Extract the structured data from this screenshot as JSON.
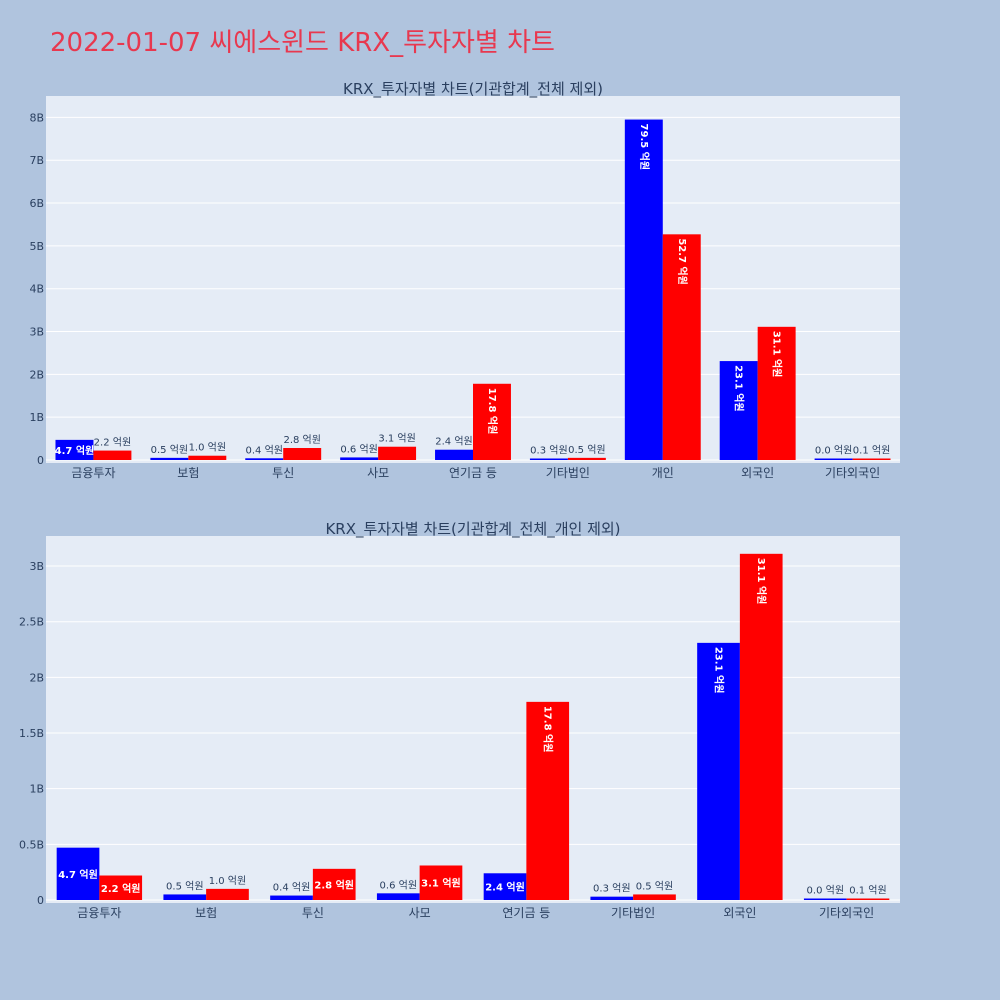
{
  "page_title": "2022-01-07 씨에스윈드 KRX_투자자별 차트",
  "colors": {
    "series_buy": "#0000ff",
    "series_sell": "#ff0000",
    "plot_bg": "#e5ecf6",
    "page_bg": "#b0c4de",
    "title": "#e8384f"
  },
  "chart_data": [
    {
      "type": "bar",
      "title": "KRX_투자자별 차트(기관합계_전체 제외)",
      "categories": [
        "금융투자",
        "보험",
        "투신",
        "사모",
        "연기금 등",
        "기타법인",
        "개인",
        "외국인",
        "기타외국인"
      ],
      "series": [
        {
          "values": [
            470000000,
            50000000,
            40000000,
            60000000,
            240000000,
            30000000,
            7950000000,
            2310000000,
            0
          ],
          "labels": [
            "4.7 억원",
            "0.5 억원",
            "0.4 억원",
            "0.6 억원",
            "2.4 억원",
            "0.3 억원",
            "79.5 억원",
            "23.1 억원",
            "0.0 억원"
          ]
        },
        {
          "values": [
            220000000,
            100000000,
            280000000,
            310000000,
            1780000000,
            50000000,
            5270000000,
            3110000000,
            10000000
          ],
          "labels": [
            "2.2 억원",
            "1.0 억원",
            "2.8 억원",
            "3.1 억원",
            "17.8 억원",
            "0.5 억원",
            "52.7 억원",
            "31.1 억원",
            "0.1 억원"
          ]
        }
      ],
      "ylim": [
        0,
        8500000000
      ],
      "yticks": [
        0,
        1000000000,
        2000000000,
        3000000000,
        4000000000,
        5000000000,
        6000000000,
        7000000000,
        8000000000
      ],
      "ytick_labels": [
        "0",
        "1B",
        "2B",
        "3B",
        "4B",
        "5B",
        "6B",
        "7B",
        "8B"
      ],
      "grid": true
    },
    {
      "type": "bar",
      "title": "KRX_투자자별 차트(기관합계_전체_개인 제외)",
      "categories": [
        "금융투자",
        "보험",
        "투신",
        "사모",
        "연기금 등",
        "기타법인",
        "외국인",
        "기타외국인"
      ],
      "series": [
        {
          "values": [
            470000000,
            50000000,
            40000000,
            60000000,
            240000000,
            30000000,
            2310000000,
            0
          ],
          "labels": [
            "4.7 억원",
            "0.5 억원",
            "0.4 억원",
            "0.6 억원",
            "2.4 억원",
            "0.3 억원",
            "23.1 억원",
            "0.0 억원"
          ]
        },
        {
          "values": [
            220000000,
            100000000,
            280000000,
            310000000,
            1780000000,
            50000000,
            3110000000,
            10000000
          ],
          "labels": [
            "2.2 억원",
            "1.0 억원",
            "2.8 억원",
            "3.1 억원",
            "17.8 억원",
            "0.5 억원",
            "31.1 억원",
            "0.1 억원"
          ]
        }
      ],
      "ylim": [
        0,
        3270000000
      ],
      "yticks": [
        0,
        500000000,
        1000000000,
        1500000000,
        2000000000,
        2500000000,
        3000000000
      ],
      "ytick_labels": [
        "0",
        "0.5B",
        "1B",
        "1.5B",
        "2B",
        "2.5B",
        "3B"
      ],
      "grid": true
    }
  ]
}
